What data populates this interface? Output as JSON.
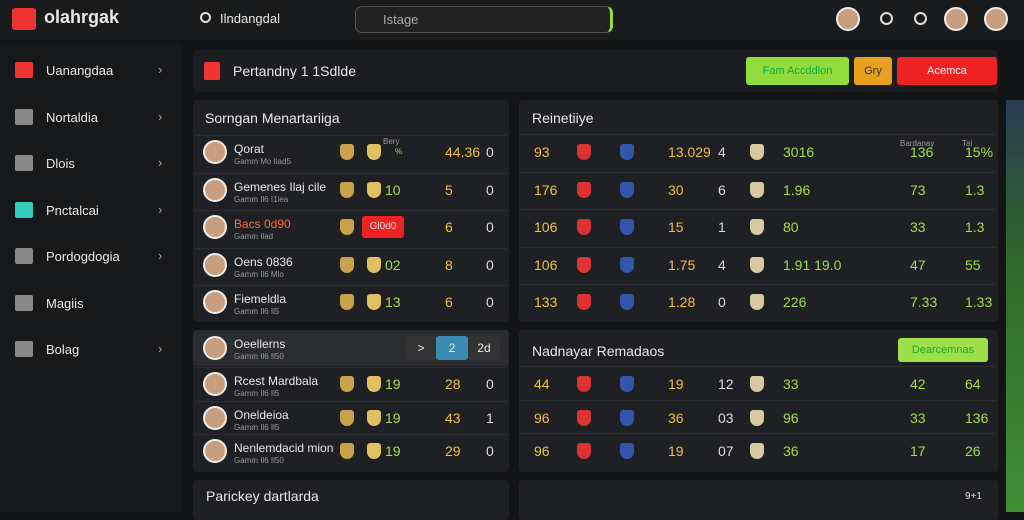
{
  "header": {
    "brand": "olahrgak",
    "search_left": "Ilndangdal",
    "search_box": "Istage"
  },
  "sidebar": {
    "items": [
      "Uanangdaa",
      "Nortaldia",
      "Dlois",
      "Pnctalcai",
      "Pordogdogia",
      "Magiis",
      "Bolag"
    ]
  },
  "toolbar": {
    "title": "Pertandny 1 1Sdlde",
    "buttons": [
      "Fam Accddlon",
      "Gry",
      "Acemca"
    ]
  },
  "left_panel": {
    "title": "Sorngan Menartariiga",
    "head": [
      "Bery",
      "%"
    ],
    "rows": [
      {
        "name": "Qorat",
        "sub": "Gamm Mo Ilad5",
        "cells": [
          "",
          "44.36",
          "0"
        ]
      },
      {
        "name": "Gemenes Ilaj cile",
        "sub": "Gamm Il6 I1lea",
        "cells": [
          "10",
          "5",
          "0"
        ]
      },
      {
        "name": "Bacs 0d90",
        "sub": "Gamm Ilad",
        "cells": [
          "Gl0d0",
          "6",
          "0"
        ]
      },
      {
        "name": "Oens 0836",
        "sub": "Gamm Il6 Mlo",
        "cells": [
          "02",
          "8",
          "0"
        ]
      },
      {
        "name": "Fiemeldla",
        "sub": "Gamm Il6 Il5",
        "cells": [
          "13",
          "6",
          "0"
        ]
      }
    ]
  },
  "lower_left": {
    "title": "Oeellerns",
    "sub": "Gamm Il6 Il50",
    "buttons": [
      ">",
      "2",
      "2d"
    ],
    "rows": [
      {
        "name": "Rcest Mardbala",
        "sub": "Gamm Il6 Il5",
        "cells": [
          "19",
          "28",
          "0"
        ]
      },
      {
        "name": "Oneldeioa",
        "sub": "Gamm Il6 Il5",
        "cells": [
          "19",
          "43",
          "1"
        ]
      },
      {
        "name": "Nenlemdacid mion",
        "sub": "Gamm Il6 Il50",
        "cells": [
          "19",
          "29",
          "0"
        ]
      }
    ]
  },
  "right_panel": {
    "title": "Reinetiiye",
    "head": [
      "Bardanay",
      "Tai"
    ],
    "rows": [
      [
        "93",
        "13.029",
        "4",
        "3016",
        "136",
        "15%"
      ],
      [
        "176",
        "30",
        "6",
        "1.96",
        "73",
        "1.3"
      ],
      [
        "106",
        "15",
        "1",
        "80",
        "33",
        "1.3"
      ],
      [
        "106",
        "1.75",
        "4",
        "1.91 19.0",
        "47",
        "55"
      ],
      [
        "133",
        "1.28",
        "0",
        "226",
        "7.33",
        "1.33"
      ]
    ]
  },
  "lower_right": {
    "title": "Nadnayar Remadaos",
    "button": "Dearcemnas",
    "rows": [
      [
        "44",
        "19",
        "12",
        "33",
        "42",
        "64"
      ],
      [
        "96",
        "36",
        "03",
        "96",
        "33",
        "136"
      ],
      [
        "96",
        "19",
        "07",
        "36",
        "17",
        "26"
      ]
    ]
  },
  "footer_panel": {
    "title": "Parickey dartlarda",
    "right": "9+1"
  }
}
